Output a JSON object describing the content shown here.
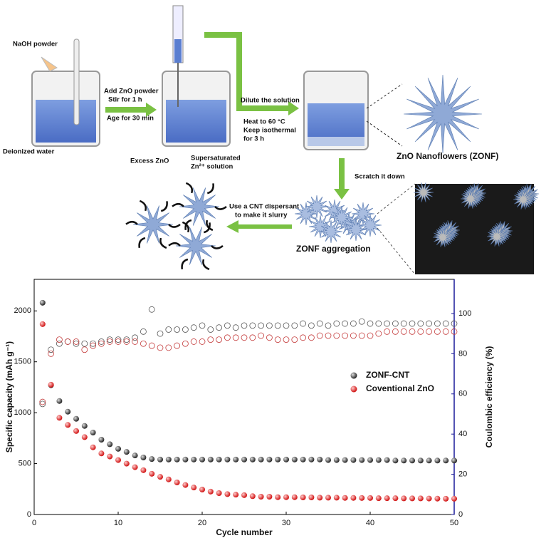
{
  "diagram": {
    "labels": [
      "NaOH powder",
      "Deionized water",
      "Add ZnO powder",
      "Stir for 1 h",
      "Age for 30 min",
      "Excess ZnO",
      "Supersaturated",
      "Zn²⁺ solution",
      "Dilute the solution",
      "Heat to 60 °C",
      "Keep isothermal",
      "for 3 h",
      "ZnO Nanoflowers (ZONF)",
      "Scratch it down",
      "Use a CNT dispersant",
      "to make it slurry",
      "ZONF aggregation"
    ]
  },
  "chart_data": {
    "type": "scatter",
    "x_label": "Cycle number",
    "y_label": "Specific capacity (mAh g⁻¹)",
    "y2_label": "Coulombic efficiency (%)",
    "x": [
      1,
      2,
      3,
      4,
      5,
      6,
      7,
      8,
      9,
      10,
      11,
      12,
      13,
      14,
      15,
      16,
      17,
      18,
      19,
      20,
      21,
      22,
      23,
      24,
      25,
      26,
      27,
      28,
      29,
      30,
      31,
      32,
      33,
      34,
      35,
      36,
      37,
      38,
      39,
      40,
      41,
      42,
      43,
      44,
      45,
      46,
      47,
      48,
      49,
      50
    ],
    "xlim": [
      0,
      50
    ],
    "xticks": [
      0,
      10,
      20,
      30,
      40,
      50
    ],
    "ylim": [
      0,
      2310
    ],
    "yticks": [
      0,
      500,
      1000,
      1500,
      2000
    ],
    "y2lim": [
      0,
      117
    ],
    "y2ticks": [
      0,
      20,
      40,
      60,
      80,
      100
    ],
    "legend": "right",
    "series": [
      {
        "name": "ZONF-CNT",
        "color": "#333333",
        "marker": "filled",
        "values": [
          2080,
          1270,
          1115,
          1010,
          940,
          870,
          805,
          735,
          690,
          645,
          615,
          580,
          560,
          545,
          540,
          540,
          540,
          540,
          540,
          540,
          540,
          540,
          540,
          540,
          540,
          540,
          540,
          540,
          540,
          540,
          540,
          540,
          540,
          540,
          535,
          535,
          535,
          535,
          535,
          535,
          535,
          535,
          530,
          530,
          530,
          530,
          530,
          530,
          530,
          530
        ]
      },
      {
        "name": "Coventional ZnO",
        "color": "#e03030",
        "marker": "filled",
        "values": [
          1870,
          1275,
          950,
          880,
          820,
          760,
          660,
          600,
          570,
          535,
          500,
          465,
          435,
          400,
          370,
          345,
          315,
          290,
          265,
          245,
          225,
          210,
          200,
          195,
          190,
          180,
          175,
          175,
          170,
          170,
          170,
          168,
          168,
          165,
          165,
          165,
          163,
          163,
          162,
          162,
          160,
          160,
          160,
          158,
          158,
          158,
          157,
          156,
          155,
          155
        ]
      },
      {
        "color": "#555555",
        "marker": "open",
        "axis": "y2",
        "values": [
          55,
          82,
          85,
          86,
          85,
          85,
          85,
          86,
          87,
          87,
          87,
          88,
          91,
          102,
          90,
          92,
          92,
          92,
          93,
          94,
          92,
          93,
          94,
          93,
          94,
          94,
          94,
          94,
          94,
          94,
          94,
          95,
          94,
          95,
          94,
          95,
          95,
          95,
          96,
          95,
          95,
          95,
          95,
          95,
          95,
          95,
          95,
          95,
          95,
          95
        ]
      },
      {
        "color": "#c43a3a",
        "marker": "open",
        "axis": "y2",
        "values": [
          56,
          80,
          87,
          86,
          86,
          82,
          84,
          85,
          86,
          86,
          86,
          86,
          85,
          84,
          83,
          83,
          84,
          85,
          86,
          86,
          87,
          87,
          88,
          88,
          88,
          88,
          89,
          88,
          87,
          87,
          87,
          88,
          88,
          89,
          89,
          89,
          89,
          89,
          89,
          89,
          90,
          91,
          91,
          91,
          91,
          91,
          91,
          91,
          91,
          91
        ]
      }
    ]
  }
}
